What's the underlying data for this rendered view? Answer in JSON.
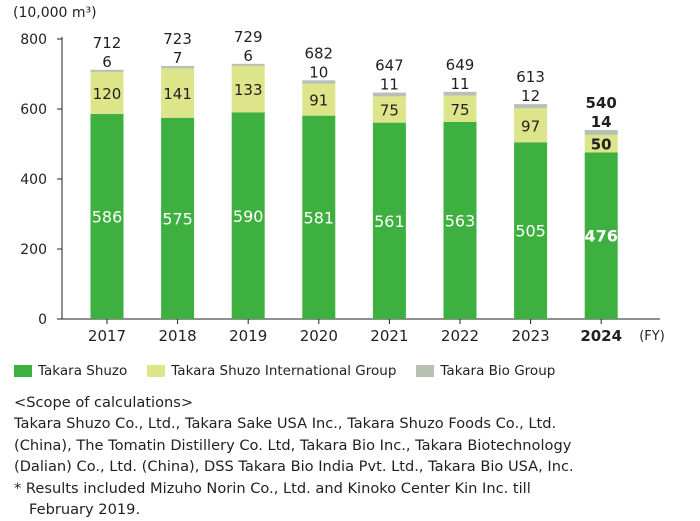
{
  "chart_data": {
    "type": "bar",
    "stacked": true,
    "title": "",
    "unit_label": "(10,000 m³)",
    "xlabel": "(FY)",
    "ylabel": "",
    "ylim": [
      0,
      800
    ],
    "yticks": [
      "0",
      "200",
      "400",
      "600",
      "800"
    ],
    "categories": [
      "2017",
      "2018",
      "2019",
      "2020",
      "2021",
      "2022",
      "2023",
      "2024"
    ],
    "highlight_category": "2024",
    "series": [
      {
        "name": "Takara Shuzo",
        "color": "#3db03f",
        "values": [
          586,
          575,
          590,
          581,
          561,
          563,
          505,
          476
        ]
      },
      {
        "name": "Takara Shuzo International Group",
        "color": "#dde58a",
        "values": [
          120,
          141,
          133,
          91,
          75,
          75,
          97,
          50
        ]
      },
      {
        "name": "Takara Bio Group",
        "color": "#b8c0b4",
        "values": [
          6,
          7,
          6,
          10,
          11,
          11,
          12,
          14
        ]
      }
    ],
    "totals": [
      712,
      723,
      729,
      682,
      647,
      649,
      613,
      540
    ],
    "legend_position": "bottom-left"
  },
  "notes": {
    "heading": "<Scope of calculations>",
    "lines": [
      "Takara Shuzo Co., Ltd., Takara Sake USA Inc., Takara Shuzo Foods Co., Ltd.",
      "(China), The Tomatin Distillery Co. Ltd, Takara Bio Inc., Takara Biotechnology",
      "(Dalian) Co., Ltd. (China), DSS Takara Bio India Pvt. Ltd., Takara Bio USA, Inc."
    ],
    "footnote_line1": "* Results included Mizuho Norin Co., Ltd. and Kinoko Center Kin Inc. till",
    "footnote_line2": "February 2019."
  }
}
